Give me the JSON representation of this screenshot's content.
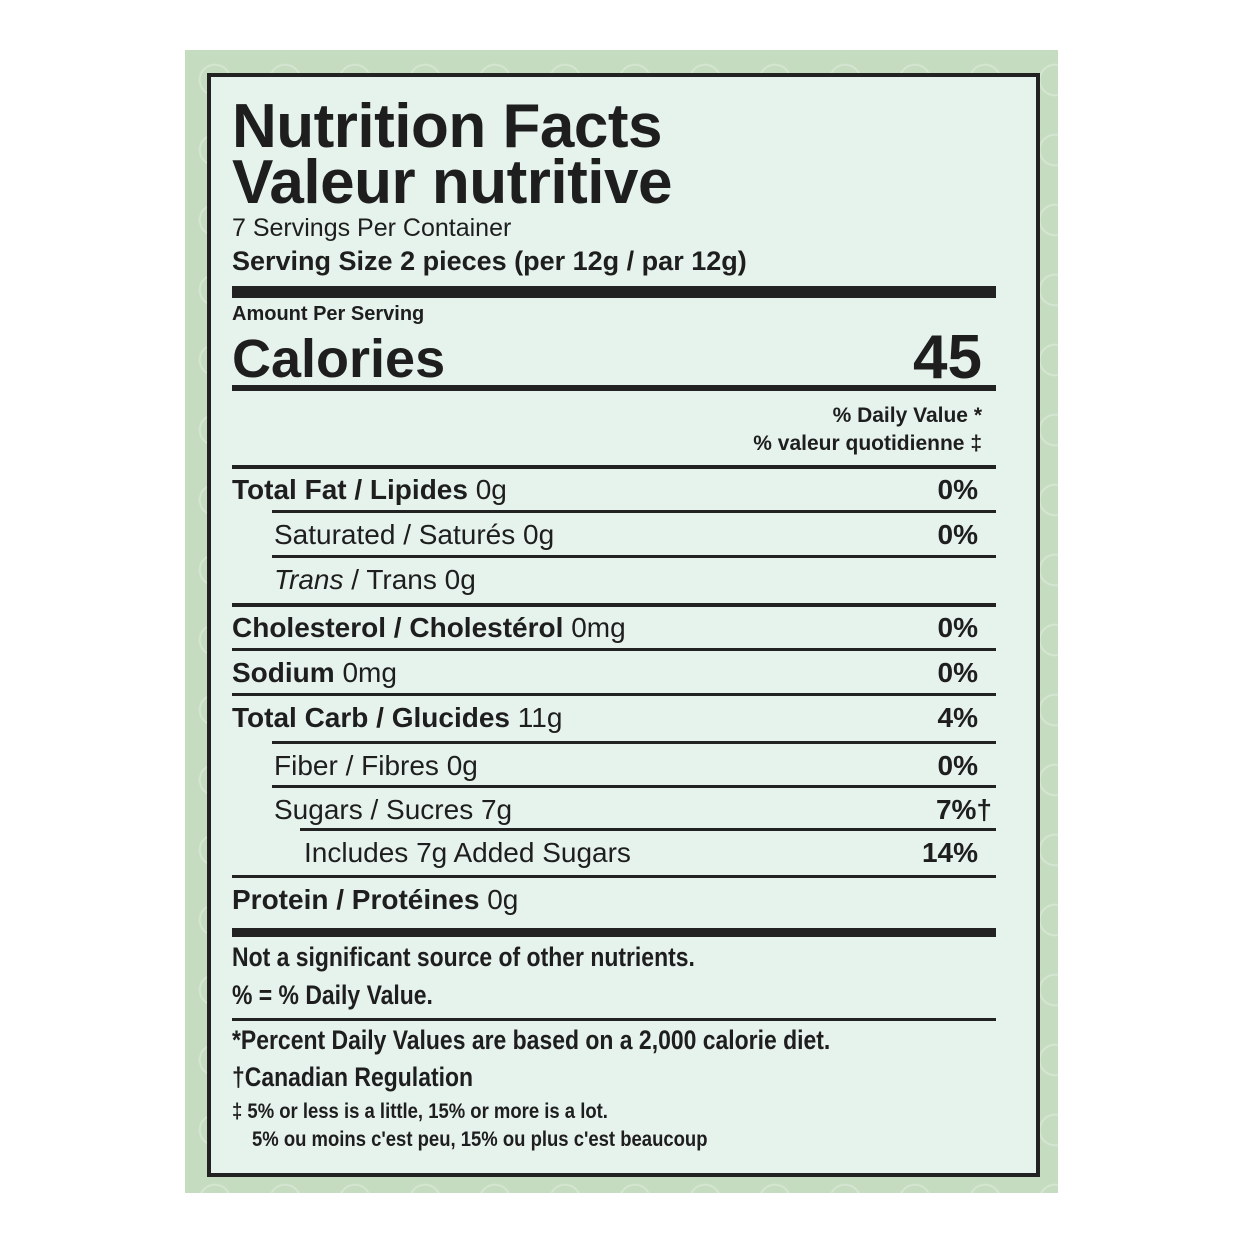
{
  "label": {
    "title_en": "Nutrition Facts",
    "title_fr": "Valeur nutritive",
    "servings_per_container": "7 Servings Per Container",
    "serving_size": "Serving Size 2 pieces (per 12g / par 12g)",
    "amount_per_serving": "Amount Per Serving",
    "calories_label": "Calories",
    "calories_value": "45",
    "dv_en": "% Daily Value *",
    "dv_fr": "% valeur quotidienne ‡",
    "nutrients": [
      {
        "name": "Total Fat / Lipides",
        "amount": "0g",
        "dv": "0%",
        "bold": true,
        "indent": 0
      },
      {
        "name": "Saturated / Saturés",
        "amount": "0g",
        "dv": "0%",
        "bold": false,
        "indent": 1
      },
      {
        "name": "Trans",
        "name_suffix": " / Trans",
        "amount": "0g",
        "dv": "",
        "bold": false,
        "indent": 1,
        "italic": true
      },
      {
        "name": "Cholesterol / Cholestérol",
        "amount": "0mg",
        "dv": "0%",
        "bold": true,
        "indent": 0
      },
      {
        "name": "Sodium",
        "amount": "0mg",
        "dv": "0%",
        "bold": true,
        "indent": 0
      },
      {
        "name": "Total Carb / Glucides",
        "amount": "11g",
        "dv": "4%",
        "bold": true,
        "indent": 0
      },
      {
        "name": "Fiber / Fibres",
        "amount": "0g",
        "dv": "0%",
        "bold": false,
        "indent": 1
      },
      {
        "name": "Sugars / Sucres",
        "amount": "7g",
        "dv": "7%†",
        "bold": false,
        "indent": 1
      },
      {
        "name": "Includes 7g Added Sugars",
        "amount": "",
        "dv": "14%",
        "bold": false,
        "indent": 2
      },
      {
        "name": "Protein / Protéines",
        "amount": "0g",
        "dv": "",
        "bold": true,
        "indent": 0
      }
    ],
    "not_significant": "Not a significant source of other nutrients.",
    "pct_dv": "% = % Daily Value.",
    "footnote_dv": "*Percent Daily Values are based on a 2,000 calorie diet.",
    "footnote_canada": "†Canadian Regulation",
    "footnote_en": "‡ 5% or less is a little, 15% or more is a lot.",
    "footnote_fr": "5% ou moins c'est peu, 15% ou plus c'est beaucoup"
  },
  "colors": {
    "background": "#c5dcc0",
    "panel": "#e6f2ec",
    "ink": "#1e1e1e"
  }
}
